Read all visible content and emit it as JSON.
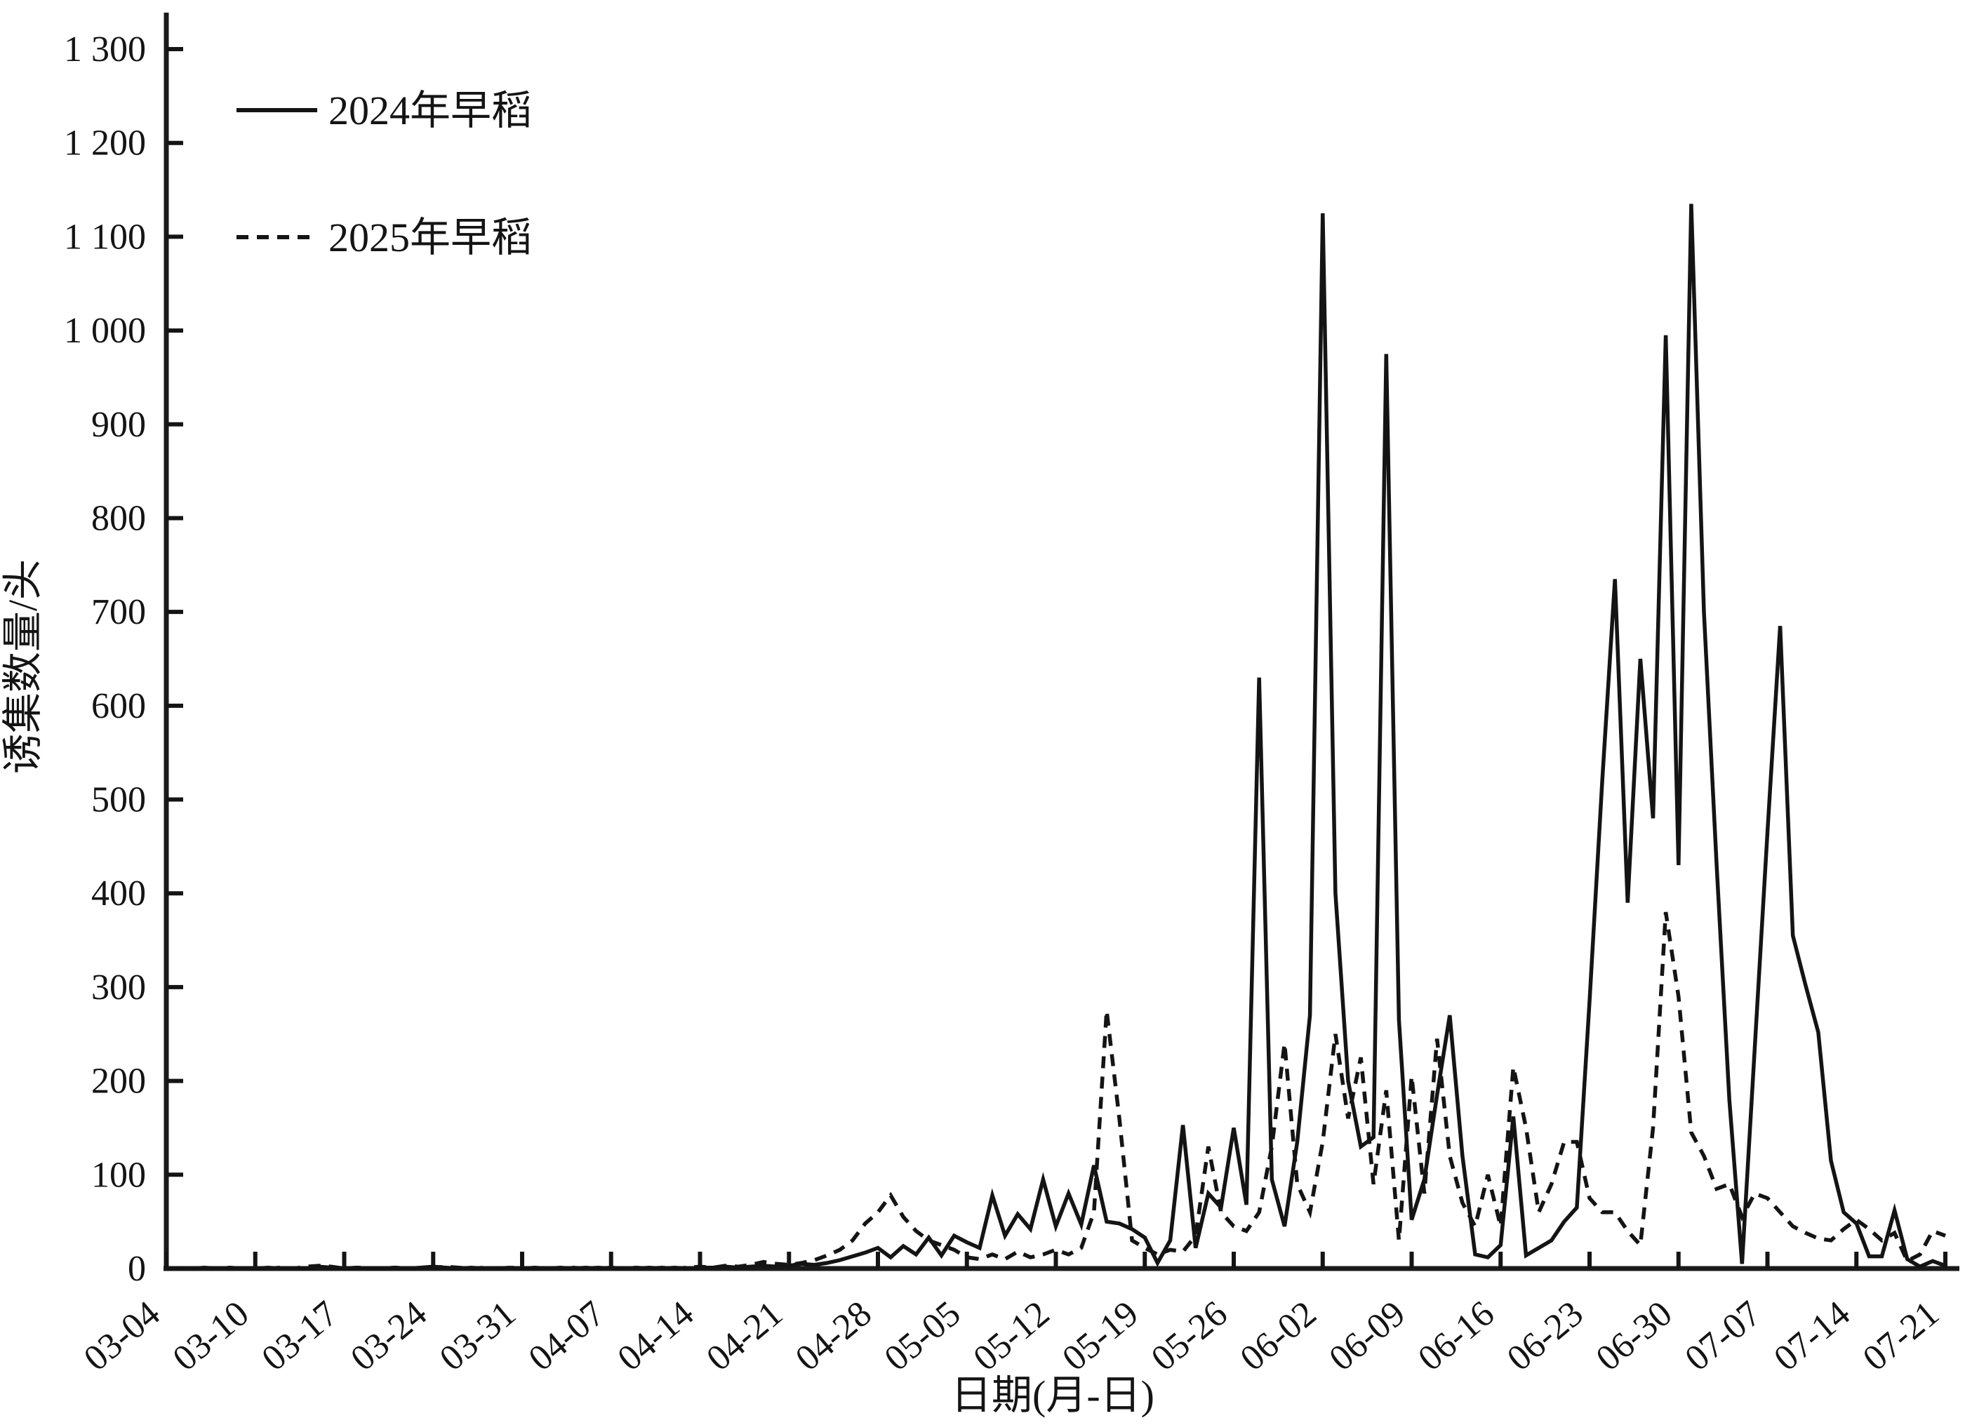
{
  "colors": {
    "line": "#141414",
    "axis": "#1a1a1a",
    "background": "#ffffff"
  },
  "chart_data": {
    "type": "line",
    "title": "",
    "xlabel": "日期(月-日)",
    "ylabel": "诱集数量/头",
    "grid": false,
    "legend_position": "top-left-inside",
    "ylim": [
      0,
      1300
    ],
    "y_tick_step": 100,
    "y_tick_labels": [
      "0",
      "100",
      "200",
      "300",
      "400",
      "500",
      "600",
      "700",
      "800",
      "900",
      "1 000",
      "1 100",
      "1 200",
      "1 300"
    ],
    "x_tick_labels": [
      "03-04",
      "03-10",
      "03-17",
      "03-24",
      "03-31",
      "04-07",
      "04-14",
      "04-21",
      "04-28",
      "05-05",
      "05-12",
      "05-19",
      "05-26",
      "06-02",
      "06-09",
      "06-16",
      "06-23",
      "06-30",
      "07-07",
      "07-14",
      "07-21"
    ],
    "points_per_tick": 7,
    "series": [
      {
        "name": "2024年早稻",
        "style": "solid",
        "values": [
          0,
          0,
          0,
          1,
          0,
          0,
          0,
          0,
          1,
          0,
          0,
          0,
          2,
          1,
          0,
          1,
          0,
          0,
          1,
          0,
          1,
          2,
          1,
          0,
          1,
          0,
          0,
          1,
          0,
          1,
          0,
          1,
          0,
          1,
          0,
          1,
          0,
          0,
          1,
          0,
          1,
          0,
          1,
          1,
          2,
          1,
          2,
          3,
          2,
          3,
          5,
          4,
          6,
          9,
          13,
          17,
          22,
          12,
          24,
          15,
          33,
          14,
          35,
          28,
          22,
          78,
          35,
          58,
          42,
          95,
          45,
          80,
          47,
          110,
          50,
          48,
          42,
          33,
          6,
          30,
          153,
          22,
          80,
          65,
          150,
          68,
          630,
          95,
          45,
          135,
          270,
          1125,
          400,
          200,
          130,
          140,
          975,
          265,
          52,
          95,
          185,
          270,
          120,
          15,
          12,
          25,
          162,
          14,
          22,
          30,
          50,
          65,
          285,
          520,
          735,
          390,
          650,
          480,
          995,
          430,
          1135,
          700,
          430,
          180,
          5,
          235,
          465,
          685,
          355,
          302,
          252,
          115,
          60,
          48,
          13,
          13,
          62,
          10,
          2,
          8,
          3
        ]
      },
      {
        "name": "2025年早稻",
        "style": "dashed",
        "values": [
          0,
          0,
          0,
          0,
          0,
          1,
          0,
          0,
          0,
          1,
          0,
          2,
          3,
          2,
          0,
          1,
          0,
          0,
          1,
          0,
          0,
          1,
          2,
          1,
          0,
          1,
          0,
          1,
          0,
          0,
          1,
          0,
          1,
          0,
          1,
          0,
          0,
          1,
          0,
          1,
          0,
          1,
          2,
          1,
          3,
          2,
          4,
          7,
          5,
          4,
          6,
          9,
          14,
          20,
          30,
          48,
          60,
          78,
          55,
          40,
          30,
          25,
          20,
          12,
          10,
          15,
          10,
          18,
          12,
          15,
          20,
          15,
          22,
          60,
          275,
          160,
          30,
          22,
          15,
          20,
          18,
          35,
          130,
          60,
          45,
          40,
          60,
          130,
          240,
          90,
          60,
          135,
          250,
          160,
          225,
          90,
          190,
          30,
          205,
          80,
          245,
          120,
          70,
          45,
          100,
          45,
          215,
          150,
          60,
          90,
          135,
          135,
          75,
          60,
          60,
          40,
          25,
          150,
          380,
          290,
          145,
          120,
          85,
          90,
          55,
          80,
          75,
          60,
          45,
          38,
          32,
          30,
          42,
          52,
          42,
          30,
          38,
          8,
          15,
          40,
          35
        ]
      }
    ]
  }
}
